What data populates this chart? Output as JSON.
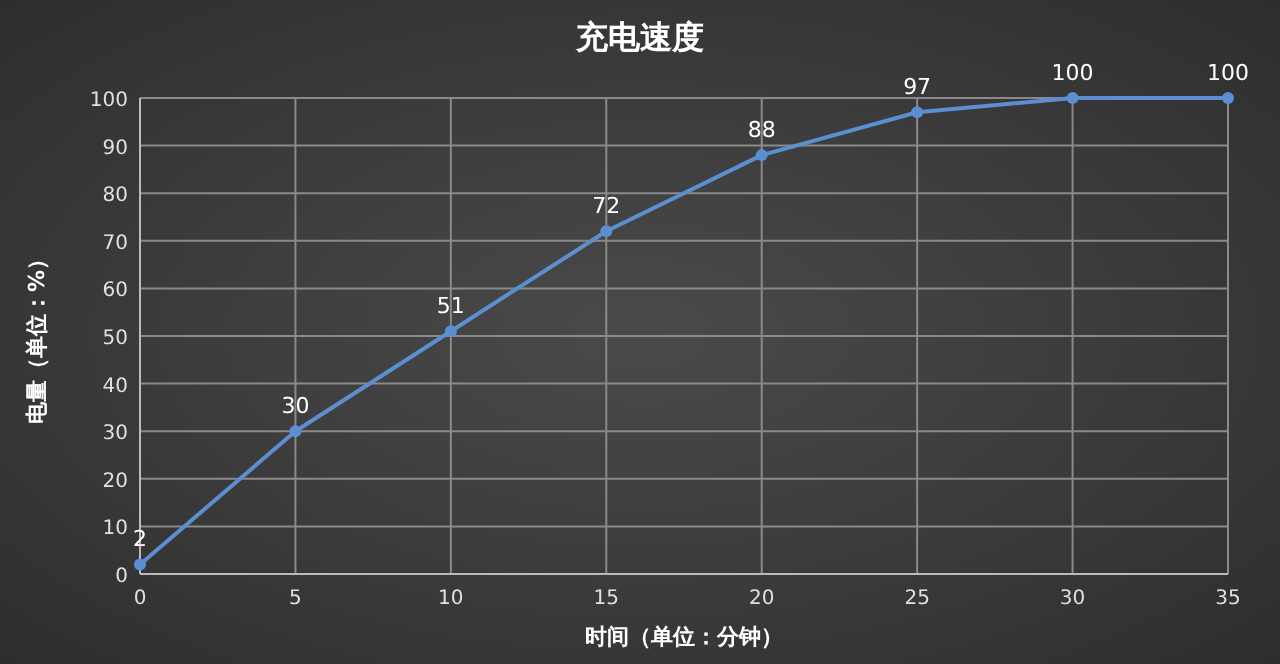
{
  "chart_data": {
    "type": "line",
    "title": "充电速度",
    "xlabel": "时间（单位：分钟）",
    "ylabel": "电量（单位：%）",
    "x": [
      0,
      5,
      10,
      15,
      20,
      25,
      30,
      35
    ],
    "values": [
      2,
      30,
      51,
      72,
      88,
      97,
      100,
      100
    ],
    "color": "#5b8fd0",
    "xlim": [
      0,
      35
    ],
    "ylim": [
      0,
      100
    ],
    "xticks": [
      0,
      5,
      10,
      15,
      20,
      25,
      30,
      35
    ],
    "yticks": [
      0,
      10,
      20,
      30,
      40,
      50,
      60,
      70,
      80,
      90,
      100
    ],
    "grid": true,
    "marker": "circle",
    "data_labels": true
  }
}
